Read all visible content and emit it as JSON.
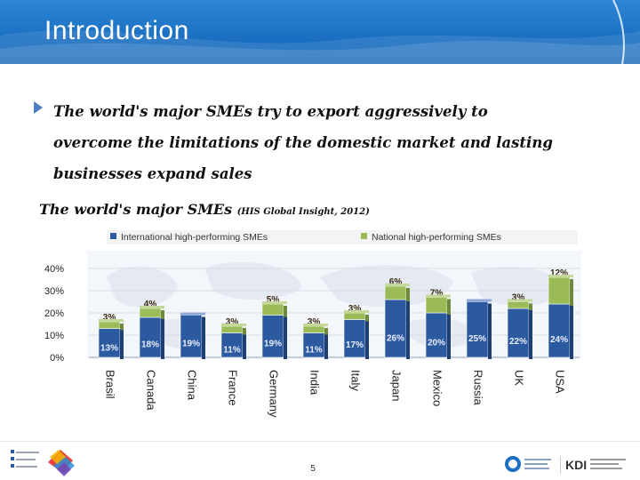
{
  "header": {
    "title": "Introduction"
  },
  "bullet": {
    "text": "The world's major SMEs try to export aggressively to overcome the limitations of the domestic market and lasting businesses expand sales"
  },
  "chart_heading": {
    "main": "The  world's major SMEs ",
    "source": "(HIS Global Insight, 2012)"
  },
  "chart_data": {
    "type": "bar",
    "stacked": true,
    "categories": [
      "Brasil",
      "Canada",
      "China",
      "France",
      "Germany",
      "India",
      "Italy",
      "Japan",
      "Mexico",
      "Russia",
      "UK",
      "USA"
    ],
    "series": [
      {
        "name": "International high-performing SMEs",
        "color": "#2c5aa0",
        "values": [
          13,
          18,
          19,
          11,
          19,
          11,
          17,
          26,
          20,
          25,
          22,
          24
        ],
        "labels": [
          "13%",
          "18%",
          "19%",
          "11%",
          "19%",
          "11%",
          "17%",
          "26%",
          "20%",
          "25%",
          "22%",
          "24%"
        ]
      },
      {
        "name": "National high-performing SMEs",
        "color": "#9bbb59",
        "values": [
          3,
          4,
          0,
          3,
          5,
          3,
          3,
          6,
          7,
          0,
          3,
          12
        ],
        "labels": [
          "3%",
          "4%",
          "",
          "3%",
          "5%",
          "3%",
          "3%",
          "6%",
          "7%",
          "",
          "3%",
          "12%"
        ]
      }
    ],
    "y_ticks": [
      "0%",
      "10%",
      "20%",
      "30%",
      "40%"
    ],
    "ylim": [
      0,
      40
    ],
    "legend_position": "top",
    "xlabel": "",
    "ylabel": ""
  },
  "footer": {
    "page_number": "5",
    "right_logo_text": "KDI"
  }
}
